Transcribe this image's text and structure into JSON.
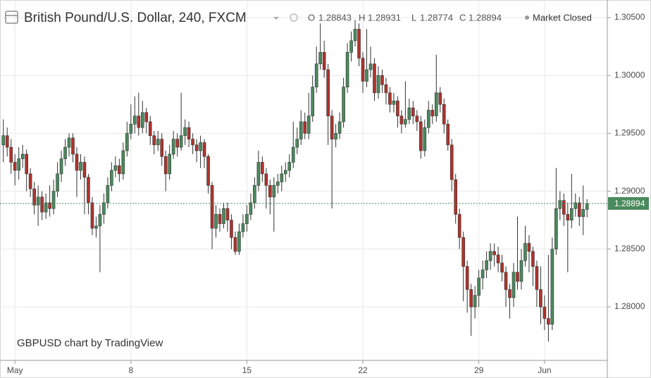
{
  "chart_data": {
    "type": "candlestick",
    "title": "British Pound/U.S. Dollar, 240, FXCM",
    "ohlc_labels": [
      "O",
      "H",
      "L",
      "C"
    ],
    "status": "Market Closed",
    "watermark": "GBPUSD chart by TradingView",
    "up_color": "#4a8a5c",
    "down_color": "#b0322c",
    "grid": true,
    "ylim": [
      1.27538,
      1.30652
    ],
    "yticks": [
      {
        "value": 1.305,
        "label": "1.30500"
      },
      {
        "value": 1.3,
        "label": "1.30000"
      },
      {
        "value": 1.295,
        "label": "1.29500"
      },
      {
        "value": 1.29,
        "label": "1.29000"
      },
      {
        "value": 1.285,
        "label": "1.28500"
      },
      {
        "value": 1.28,
        "label": "1.28000"
      }
    ],
    "categories": [
      null,
      null,
      null,
      "May",
      null,
      null,
      null,
      null,
      null,
      null,
      null,
      null,
      null,
      null,
      null,
      null,
      null,
      null,
      null,
      null,
      null,
      null,
      null,
      null,
      null,
      null,
      null,
      null,
      null,
      null,
      null,
      null,
      null,
      "8",
      null,
      null,
      null,
      null,
      null,
      null,
      null,
      null,
      null,
      null,
      null,
      null,
      null,
      null,
      null,
      null,
      null,
      null,
      null,
      null,
      null,
      null,
      null,
      null,
      null,
      null,
      null,
      null,
      null,
      "15",
      null,
      null,
      null,
      null,
      null,
      null,
      null,
      null,
      null,
      null,
      null,
      null,
      null,
      null,
      null,
      null,
      null,
      null,
      null,
      null,
      null,
      null,
      null,
      null,
      null,
      null,
      null,
      null,
      null,
      "22",
      null,
      null,
      null,
      null,
      null,
      null,
      null,
      null,
      null,
      null,
      null,
      null,
      null,
      null,
      null,
      null,
      null,
      null,
      null,
      null,
      null,
      null,
      null,
      null,
      null,
      null,
      null,
      null,
      null,
      "29",
      null,
      null,
      null,
      null,
      null,
      null,
      null,
      null,
      null,
      null,
      null,
      null,
      null,
      null,
      null,
      null,
      "Jun",
      null,
      null,
      null,
      null,
      null,
      null,
      null,
      null,
      null,
      null,
      null
    ],
    "open": [
      1.294,
      1.2948,
      1.2938,
      1.2925,
      1.2918,
      1.2928,
      1.2932,
      1.2915,
      1.2902,
      1.2888,
      1.2895,
      1.2882,
      1.289,
      1.2885,
      1.29,
      1.2915,
      1.2928,
      1.2938,
      1.2946,
      1.2932,
      1.2918,
      1.2925,
      1.2912,
      1.289,
      1.2868,
      1.287,
      1.288,
      1.289,
      1.2905,
      1.2918,
      1.2922,
      1.2915,
      1.2935,
      1.295,
      1.2958,
      1.2965,
      1.2955,
      1.2968,
      1.296,
      1.2948,
      1.294,
      1.2945,
      1.293,
      1.2915,
      1.2932,
      1.2945,
      1.2938,
      1.2948,
      1.2955,
      1.2945,
      1.294,
      1.2935,
      1.2942,
      1.293,
      1.2905,
      1.2868,
      1.288,
      1.2872,
      1.2885,
      1.2875,
      1.286,
      1.2848,
      1.2865,
      1.2872,
      1.288,
      1.289,
      1.2905,
      1.2925,
      1.2915,
      1.2905,
      1.2895,
      1.2905,
      1.2908,
      1.2915,
      1.2918,
      1.2925,
      1.2938,
      1.2945,
      1.296,
      1.295,
      1.2965,
      1.299,
      1.301,
      1.302,
      1.3005,
      1.2965,
      1.2945,
      1.295,
      1.296,
      1.299,
      1.302,
      1.303,
      1.304,
      1.3015,
      1.2995,
      1.3005,
      1.301,
      1.2985,
      1.3,
      1.2992,
      1.2985,
      1.2975,
      1.2978,
      1.2965,
      1.2958,
      1.2962,
      1.2972,
      1.2965,
      1.296,
      1.2935,
      1.2955,
      1.297,
      1.2965,
      1.2985,
      1.2975,
      1.2958,
      1.294,
      1.291,
      1.288,
      1.286,
      1.2835,
      1.2815,
      1.28,
      1.281,
      1.2825,
      1.2832,
      1.284,
      1.2848,
      1.2845,
      1.2838,
      1.283,
      1.2815,
      1.2808,
      1.283,
      1.2822,
      1.284,
      1.2855,
      1.2848,
      1.2835,
      1.2815,
      1.28,
      1.279,
      1.2785,
      1.285,
      1.2885,
      1.2892,
      1.288,
      1.2875,
      1.2885,
      1.289,
      1.2878,
      1.28843
    ],
    "high": [
      1.2962,
      1.2955,
      1.2945,
      1.2932,
      1.2938,
      1.294,
      1.2936,
      1.292,
      1.2908,
      1.2905,
      1.29,
      1.2898,
      1.2905,
      1.291,
      1.2925,
      1.2935,
      1.2945,
      1.295,
      1.295,
      1.2938,
      1.2932,
      1.293,
      1.2915,
      1.2895,
      1.2878,
      1.2888,
      1.2898,
      1.2912,
      1.2925,
      1.293,
      1.2928,
      1.2942,
      1.296,
      1.2975,
      1.2982,
      1.2985,
      1.2978,
      1.2972,
      1.2965,
      1.2952,
      1.2952,
      1.295,
      1.2935,
      1.294,
      1.2952,
      1.295,
      1.2985,
      1.2962,
      1.296,
      1.295,
      1.2945,
      1.2948,
      1.2945,
      1.2932,
      1.2908,
      1.2888,
      1.2885,
      1.289,
      1.289,
      1.288,
      1.2865,
      1.2872,
      1.288,
      1.2888,
      1.2898,
      1.2912,
      1.2935,
      1.293,
      1.292,
      1.291,
      1.2912,
      1.2915,
      1.2922,
      1.2925,
      1.2932,
      1.296,
      1.2955,
      1.297,
      1.2968,
      1.2985,
      1.3,
      1.3025,
      1.3045,
      1.303,
      1.301,
      1.297,
      1.2958,
      1.2968,
      1.2998,
      1.3028,
      1.3038,
      1.3048,
      1.3045,
      1.302,
      1.304,
      1.3025,
      1.3015,
      1.3008,
      1.3005,
      1.2998,
      1.299,
      1.2985,
      1.2982,
      1.297,
      1.2995,
      1.298,
      1.2978,
      1.297,
      1.2965,
      1.2962,
      1.2978,
      1.2975,
      1.3018,
      1.299,
      1.298,
      1.2962,
      1.2945,
      1.2915,
      1.2885,
      1.2865,
      1.284,
      1.282,
      1.2818,
      1.2832,
      1.284,
      1.2848,
      1.2855,
      1.2855,
      1.2852,
      1.2845,
      1.2835,
      1.282,
      1.2838,
      1.2878,
      1.285,
      1.287,
      1.2862,
      1.2852,
      1.284,
      1.2835,
      1.281,
      1.2845,
      1.286,
      1.292,
      1.29,
      1.2898,
      1.289,
      1.2915,
      1.2898,
      1.2895,
      1.2905,
      1.28931
    ],
    "low": [
      1.2925,
      1.293,
      1.2915,
      1.2905,
      1.291,
      1.292,
      1.29,
      1.2895,
      1.288,
      1.287,
      1.2875,
      1.2876,
      1.2878,
      1.288,
      1.2895,
      1.2908,
      1.2922,
      1.293,
      1.2925,
      1.2895,
      1.291,
      1.288,
      1.288,
      1.2862,
      1.286,
      1.283,
      1.2872,
      1.2885,
      1.29,
      1.2912,
      1.2908,
      1.291,
      1.293,
      1.2945,
      1.295,
      1.2948,
      1.295,
      1.295,
      1.294,
      1.2932,
      1.2935,
      1.2922,
      1.29,
      1.291,
      1.2928,
      1.293,
      1.2935,
      1.294,
      1.2938,
      1.2932,
      1.2925,
      1.292,
      1.292,
      1.2898,
      1.285,
      1.286,
      1.2865,
      1.2868,
      1.2865,
      1.285,
      1.2845,
      1.2845,
      1.286,
      1.2865,
      1.2875,
      1.2885,
      1.29,
      1.2908,
      1.2885,
      1.288,
      1.2865,
      1.2898,
      1.29,
      1.2908,
      1.2912,
      1.292,
      1.2932,
      1.294,
      1.2945,
      1.2945,
      1.296,
      1.2985,
      1.3005,
      1.2998,
      1.294,
      1.2885,
      1.2938,
      1.2945,
      1.2955,
      1.2985,
      1.3012,
      1.3025,
      1.3008,
      1.2985,
      1.299,
      1.2998,
      1.2978,
      1.298,
      1.2985,
      1.2975,
      1.2968,
      1.2968,
      1.2955,
      1.295,
      1.2955,
      1.2958,
      1.2958,
      1.2952,
      1.2928,
      1.293,
      1.295,
      1.2958,
      1.296,
      1.2968,
      1.295,
      1.2935,
      1.29,
      1.2872,
      1.285,
      1.2805,
      1.2795,
      1.2775,
      1.279,
      1.28,
      1.2815,
      1.2825,
      1.2832,
      1.2835,
      1.283,
      1.2822,
      1.28,
      1.279,
      1.28,
      1.2815,
      1.2815,
      1.2835,
      1.283,
      1.2818,
      1.28,
      1.2785,
      1.278,
      1.277,
      1.278,
      1.2845,
      1.2875,
      1.287,
      1.283,
      1.2868,
      1.2878,
      1.287,
      1.2862,
      1.28774
    ],
    "close": [
      1.2948,
      1.2938,
      1.2925,
      1.2918,
      1.2928,
      1.2932,
      1.2915,
      1.2902,
      1.2888,
      1.2895,
      1.2882,
      1.289,
      1.2885,
      1.29,
      1.2915,
      1.2928,
      1.2938,
      1.2946,
      1.2932,
      1.2918,
      1.2925,
      1.2912,
      1.289,
      1.2868,
      1.287,
      1.288,
      1.289,
      1.2905,
      1.2918,
      1.2922,
      1.2915,
      1.2935,
      1.295,
      1.2958,
      1.2965,
      1.2955,
      1.2968,
      1.296,
      1.2948,
      1.294,
      1.2945,
      1.293,
      1.2915,
      1.2932,
      1.2945,
      1.2938,
      1.2948,
      1.2955,
      1.2945,
      1.294,
      1.2935,
      1.2942,
      1.293,
      1.2905,
      1.2868,
      1.288,
      1.2872,
      1.2885,
      1.2875,
      1.286,
      1.2848,
      1.2865,
      1.2872,
      1.288,
      1.289,
      1.2905,
      1.2925,
      1.2915,
      1.2905,
      1.2895,
      1.2905,
      1.2908,
      1.2915,
      1.2918,
      1.2925,
      1.2938,
      1.2945,
      1.296,
      1.295,
      1.2965,
      1.299,
      1.301,
      1.302,
      1.3005,
      1.2965,
      1.2945,
      1.295,
      1.296,
      1.299,
      1.302,
      1.303,
      1.304,
      1.3015,
      1.2995,
      1.3005,
      1.301,
      1.2985,
      1.3,
      1.2992,
      1.2985,
      1.2975,
      1.2978,
      1.2965,
      1.2958,
      1.2962,
      1.2972,
      1.2965,
      1.296,
      1.2935,
      1.2955,
      1.297,
      1.2965,
      1.2985,
      1.2975,
      1.2958,
      1.294,
      1.291,
      1.288,
      1.286,
      1.2835,
      1.2815,
      1.28,
      1.281,
      1.2825,
      1.2832,
      1.284,
      1.2848,
      1.2845,
      1.2838,
      1.283,
      1.2815,
      1.2808,
      1.283,
      1.2822,
      1.284,
      1.2855,
      1.2848,
      1.2835,
      1.2815,
      1.28,
      1.279,
      1.2785,
      1.285,
      1.2885,
      1.2892,
      1.288,
      1.2875,
      1.2885,
      1.289,
      1.2878,
      1.28843,
      1.28894
    ]
  }
}
